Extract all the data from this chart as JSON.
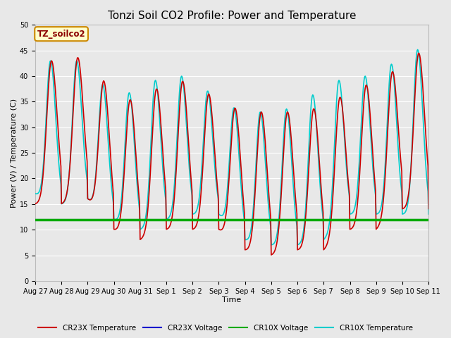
{
  "title": "Tonzi Soil CO2 Profile: Power and Temperature",
  "xlabel": "Time",
  "ylabel": "Power (V) / Temperature (C)",
  "ylim": [
    0,
    50
  ],
  "annotation": "TZ_soilco2",
  "legend_entries": [
    "CR23X Temperature",
    "CR23X Voltage",
    "CR10X Voltage",
    "CR10X Temperature"
  ],
  "legend_colors": [
    "#cc0000",
    "#0000cc",
    "#00aa00",
    "#00cccc"
  ],
  "cr10x_voltage_value": 12.0,
  "cr23x_voltage_value": 12.0,
  "fig_bg_color": "#e8e8e8",
  "plot_bg_color": "#e8e8e8",
  "grid_color": "#ffffff",
  "title_fontsize": 11,
  "tick_fontsize": 7,
  "ylabel_fontsize": 8,
  "xlabel_fontsize": 8,
  "tick_labels": [
    "Aug 27",
    "Aug 28",
    "Aug 29",
    "Aug 30",
    "Aug 31",
    "Sep 1",
    "Sep 2",
    "Sep 3",
    "Sep 4",
    "Sep 5",
    "Sep 6",
    "Sep 7",
    "Sep 8",
    "Sep 9",
    "Sep 10",
    "Sep 11"
  ]
}
